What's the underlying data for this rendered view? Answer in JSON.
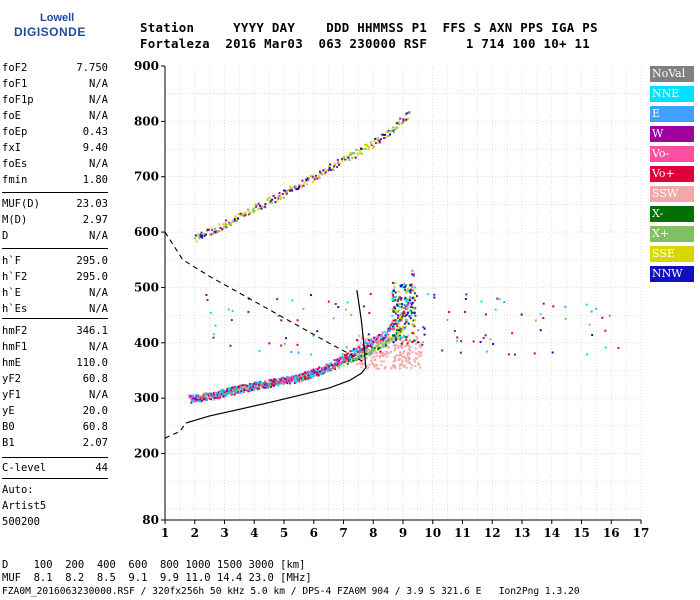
{
  "logo": {
    "brand": "Lowell",
    "product": "DIGISONDE"
  },
  "header": {
    "row1": "Station     YYYY DAY    DDD HHMMSS P1  FFS S AXN PPS IGA PS",
    "row2": "Fortaleza  2016 Mar03  063 230000 RSF     1 714 100 10+ 11"
  },
  "params": [
    {
      "name": "foF2",
      "value": "7.750"
    },
    {
      "name": "foF1",
      "value": "N/A"
    },
    {
      "name": "foF1p",
      "value": "N/A"
    },
    {
      "name": "foE",
      "value": "N/A"
    },
    {
      "name": "foEp",
      "value": "0.43"
    },
    {
      "name": "fxI",
      "value": "9.40"
    },
    {
      "name": "foEs",
      "value": "N/A"
    },
    {
      "name": "fmin",
      "value": "1.80"
    },
    {
      "name": "MUF(D)",
      "value": "23.03"
    },
    {
      "name": "M(D)",
      "value": "2.97"
    },
    {
      "name": "D",
      "value": "N/A"
    },
    {
      "name": "h`F",
      "value": "295.0"
    },
    {
      "name": "h`F2",
      "value": "295.0"
    },
    {
      "name": "h`E",
      "value": "N/A"
    },
    {
      "name": "h`Es",
      "value": "N/A"
    },
    {
      "name": "hmF2",
      "value": "346.1"
    },
    {
      "name": "hmF1",
      "value": "N/A"
    },
    {
      "name": "hmE",
      "value": "110.0"
    },
    {
      "name": "yF2",
      "value": "60.8"
    },
    {
      "name": "yF1",
      "value": "N/A"
    },
    {
      "name": "yE",
      "value": "20.0"
    },
    {
      "name": "B0",
      "value": "60.8"
    },
    {
      "name": "B1",
      "value": "2.07"
    },
    {
      "name": "C-level",
      "value": "44"
    }
  ],
  "autoscaling": {
    "label": "Auto:",
    "name": "Artist5",
    "version": "500200"
  },
  "bottom": {
    "d_row": "D    100  200  400  600  800 1000 1500 3000 [km]",
    "muf_row": "MUF  8.1  8.2  8.5  9.1  9.9 11.0 14.4 23.0 [MHz]",
    "file_row": "FZA0M_2016063230000.RSF / 320fx256h 50 kHz 5.0 km / DPS-4 FZA0M 904 / 3.9 S 321.6 E   Ion2Png 1.3.20"
  },
  "legend": [
    {
      "label": "NoVal",
      "color": "#808080"
    },
    {
      "label": "NNE",
      "color": "#00e0ff"
    },
    {
      "label": "E",
      "color": "#3fa0ff"
    },
    {
      "label": "W",
      "color": "#a000a0"
    },
    {
      "label": "Vo-",
      "color": "#ff4fa0"
    },
    {
      "label": "Vo+",
      "color": "#e0003a"
    },
    {
      "label": "SSW",
      "color": "#f2a8a8"
    },
    {
      "label": "X-",
      "color": "#007000"
    },
    {
      "label": "X+",
      "color": "#7fc060"
    },
    {
      "label": "SSE",
      "color": "#d8d800"
    },
    {
      "label": "NNW",
      "color": "#1010c0"
    }
  ],
  "chart_data": {
    "type": "scatter",
    "xlim": [
      1,
      17
    ],
    "ylim": [
      80,
      900
    ],
    "x_ticks": [
      1,
      2,
      3,
      4,
      5,
      6,
      7,
      8,
      9,
      10,
      11,
      12,
      13,
      14,
      15,
      16,
      17
    ],
    "y_ticks": [
      80,
      200,
      300,
      400,
      500,
      600,
      700,
      800,
      900
    ],
    "grid": true,
    "x_grid_step": 0.5,
    "y_grid": [
      100,
      150,
      200,
      250,
      300,
      350,
      400,
      450,
      500,
      550,
      600,
      650,
      700,
      750,
      800,
      850
    ],
    "traces": [
      {
        "name": "F2 O-mode trace",
        "points": [
          [
            1.8,
            300
          ],
          [
            2.5,
            305
          ],
          [
            3.5,
            318
          ],
          [
            4.5,
            328
          ],
          [
            5.5,
            338
          ],
          [
            6.5,
            358
          ],
          [
            7.2,
            380
          ],
          [
            7.8,
            398
          ],
          [
            8.4,
            418
          ],
          [
            8.9,
            448
          ],
          [
            9.2,
            480
          ],
          [
            9.3,
            525
          ]
        ]
      },
      {
        "name": "F2 X-mode trace",
        "points": [
          [
            2.0,
            300
          ],
          [
            3.0,
            312
          ],
          [
            4.0,
            322
          ],
          [
            5.0,
            332
          ],
          [
            6.0,
            345
          ],
          [
            7.0,
            366
          ],
          [
            7.8,
            385
          ],
          [
            8.5,
            405
          ],
          [
            9.0,
            430
          ]
        ]
      },
      {
        "name": "Second hop",
        "points": [
          [
            2.0,
            590
          ],
          [
            3.0,
            615
          ],
          [
            4.0,
            645
          ],
          [
            5.0,
            672
          ],
          [
            6.0,
            702
          ],
          [
            7.0,
            732
          ],
          [
            8.0,
            762
          ],
          [
            8.7,
            790
          ],
          [
            9.2,
            815
          ]
        ]
      },
      {
        "name": "SSW spread",
        "points": [
          [
            7.5,
            380
          ],
          [
            8.0,
            390
          ],
          [
            8.5,
            395
          ],
          [
            9.0,
            400
          ],
          [
            9.5,
            405
          ],
          [
            9.5,
            380
          ]
        ]
      }
    ],
    "profile_solid": [
      [
        1.7,
        255
      ],
      [
        2.5,
        268
      ],
      [
        3.5,
        280
      ],
      [
        4.5,
        292
      ],
      [
        5.5,
        305
      ],
      [
        6.5,
        318
      ],
      [
        7.2,
        332
      ],
      [
        7.6,
        345
      ],
      [
        7.75,
        355
      ],
      [
        7.7,
        390
      ],
      [
        7.6,
        440
      ],
      [
        7.45,
        495
      ]
    ],
    "profile_dashed": [
      [
        1.0,
        600
      ],
      [
        1.6,
        550
      ],
      [
        2.5,
        520
      ],
      [
        3.5,
        490
      ],
      [
        4.5,
        460
      ],
      [
        5.5,
        430
      ],
      [
        6.5,
        400
      ],
      [
        7.2,
        380
      ],
      [
        7.7,
        365
      ]
    ],
    "profile_dashed_lower": [
      [
        1.0,
        228
      ],
      [
        1.5,
        240
      ],
      [
        1.7,
        255
      ]
    ]
  }
}
